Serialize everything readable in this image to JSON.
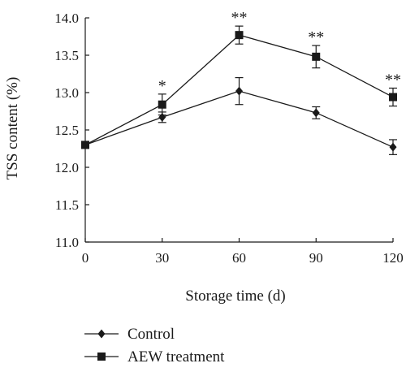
{
  "chart_data": {
    "type": "line",
    "xlabel": "Storage time (d)",
    "ylabel": "TSS content (%)",
    "x": [
      0,
      30,
      60,
      90,
      120
    ],
    "x_ticks": [
      "0",
      "30",
      "60",
      "90",
      "120"
    ],
    "y_ticks": [
      "11.0",
      "11.5",
      "12.0",
      "12.5",
      "13.0",
      "13.5",
      "14.0"
    ],
    "xlim": [
      0,
      120
    ],
    "ylim": [
      11.0,
      14.0
    ],
    "grid": false,
    "legend_position": "bottom-left",
    "series": [
      {
        "name": "Control",
        "marker": "diamond",
        "values": [
          12.3,
          12.67,
          13.02,
          12.73,
          12.27
        ],
        "errors": [
          0.0,
          0.07,
          0.18,
          0.08,
          0.1
        ]
      },
      {
        "name": "AEW treatment",
        "marker": "square",
        "values": [
          12.3,
          12.84,
          13.77,
          13.48,
          12.94
        ],
        "errors": [
          0.0,
          0.14,
          0.12,
          0.15,
          0.12
        ]
      }
    ],
    "annotations": [
      {
        "x": 30,
        "text": "*"
      },
      {
        "x": 60,
        "text": "**"
      },
      {
        "x": 90,
        "text": "**"
      },
      {
        "x": 120,
        "text": "**"
      }
    ],
    "colors": {
      "line": "#1a1a1a"
    }
  }
}
